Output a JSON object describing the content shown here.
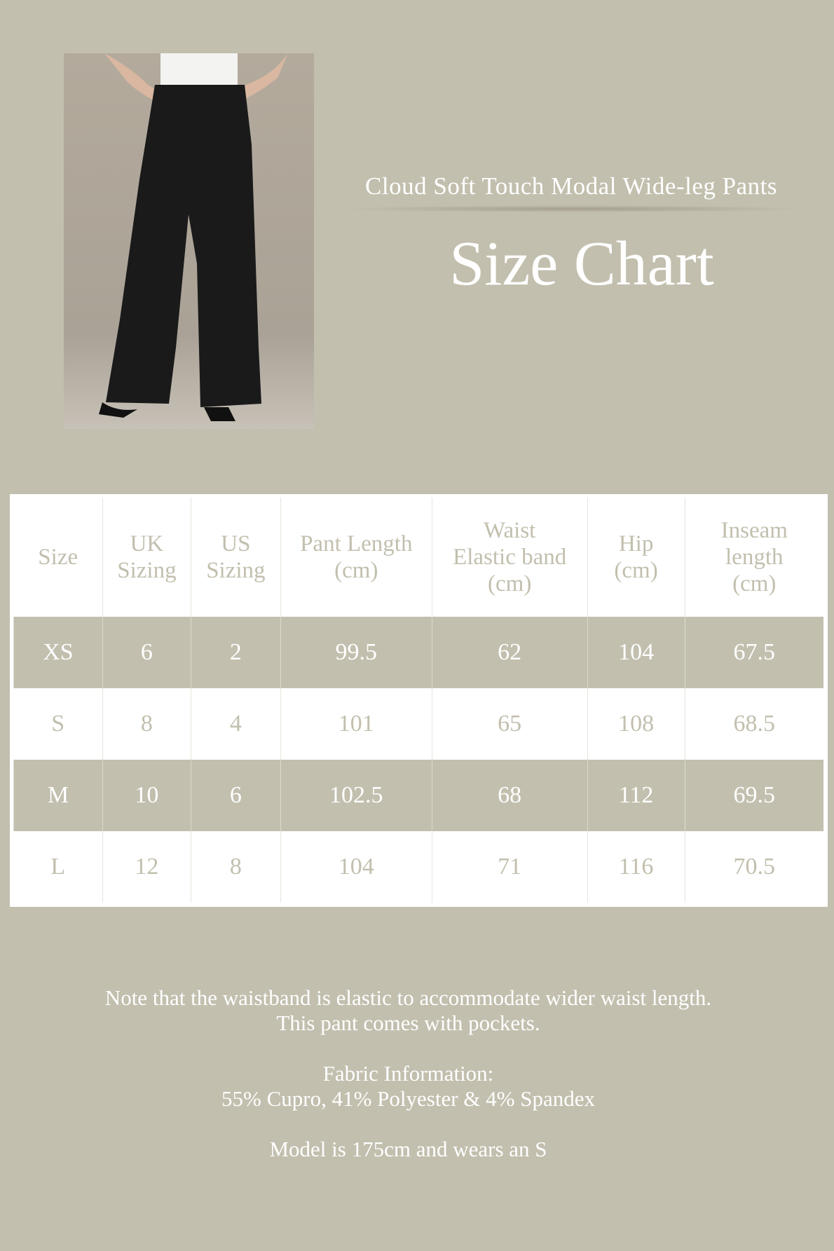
{
  "header": {
    "subtitle": "Cloud Soft Touch Modal Wide-leg Pants",
    "title": "Size Chart"
  },
  "colors": {
    "background": "#c2bfae",
    "table_bg": "#ffffff",
    "text_light": "#ffffff"
  },
  "table": {
    "columns": [
      [
        "Size"
      ],
      [
        "UK",
        "Sizing"
      ],
      [
        "US",
        "Sizing"
      ],
      [
        "Pant Length",
        "(cm)"
      ],
      [
        "Waist",
        "Elastic band",
        "(cm)"
      ],
      [
        "Hip",
        "(cm)"
      ],
      [
        "Inseam",
        "length",
        "(cm)"
      ]
    ],
    "rows": [
      [
        "XS",
        "6",
        "2",
        "99.5",
        "62",
        "104",
        "67.5"
      ],
      [
        "S",
        "8",
        "4",
        "101",
        "65",
        "108",
        "68.5"
      ],
      [
        "M",
        "10",
        "6",
        "102.5",
        "68",
        "112",
        "69.5"
      ],
      [
        "L",
        "12",
        "8",
        "104",
        "71",
        "116",
        "70.5"
      ]
    ]
  },
  "notes": {
    "line1": "Note that the waistband is elastic to accommodate wider waist length.",
    "line2": "This pant comes with pockets.",
    "fabric_label": "Fabric Information:",
    "fabric": "55% Cupro, 41% Polyester & 4% Spandex",
    "model": "Model is 175cm and wears an S"
  }
}
